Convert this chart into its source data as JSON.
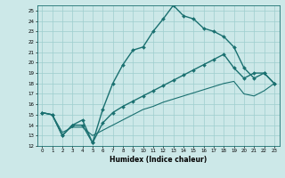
{
  "title": "",
  "xlabel": "Humidex (Indice chaleur)",
  "ylabel": "",
  "xlim": [
    -0.5,
    23.5
  ],
  "ylim": [
    12,
    25.5
  ],
  "xticks": [
    0,
    1,
    2,
    3,
    4,
    5,
    6,
    7,
    8,
    9,
    10,
    11,
    12,
    13,
    14,
    15,
    16,
    17,
    18,
    19,
    20,
    21,
    22,
    23
  ],
  "yticks": [
    12,
    13,
    14,
    15,
    16,
    17,
    18,
    19,
    20,
    21,
    22,
    23,
    24,
    25
  ],
  "background_color": "#cce8e8",
  "line_color": "#1a7070",
  "grid_color": "#9ecece",
  "series": [
    {
      "x": [
        0,
        1,
        2,
        3,
        4,
        5,
        6,
        7,
        8,
        9,
        10,
        11,
        12,
        13,
        14,
        15,
        16,
        17,
        18,
        19,
        20,
        21,
        22,
        23
      ],
      "y": [
        15.2,
        15.0,
        13.0,
        14.0,
        14.5,
        12.3,
        15.5,
        18.0,
        19.8,
        21.2,
        21.5,
        23.0,
        24.2,
        25.5,
        24.5,
        24.2,
        23.3,
        23.0,
        22.5,
        21.5,
        19.5,
        18.5,
        19.0,
        18.0
      ],
      "marker": "D",
      "markersize": 2.0,
      "linewidth": 1.0
    },
    {
      "x": [
        0,
        1,
        2,
        3,
        4,
        5,
        6,
        7,
        8,
        9,
        10,
        11,
        12,
        13,
        14,
        15,
        16,
        17,
        18,
        19,
        20,
        21,
        22,
        23
      ],
      "y": [
        15.2,
        15.0,
        13.0,
        14.0,
        14.0,
        12.3,
        14.2,
        15.2,
        15.8,
        16.3,
        16.8,
        17.3,
        17.8,
        18.3,
        18.8,
        19.3,
        19.8,
        20.3,
        20.8,
        19.5,
        18.5,
        19.0,
        19.0,
        18.0
      ],
      "marker": "D",
      "markersize": 2.0,
      "linewidth": 1.0
    },
    {
      "x": [
        0,
        1,
        2,
        3,
        4,
        5,
        6,
        7,
        8,
        9,
        10,
        11,
        12,
        13,
        14,
        15,
        16,
        17,
        18,
        19,
        20,
        21,
        22,
        23
      ],
      "y": [
        15.2,
        15.0,
        13.3,
        13.8,
        13.8,
        13.0,
        13.5,
        14.0,
        14.5,
        15.0,
        15.5,
        15.8,
        16.2,
        16.5,
        16.8,
        17.1,
        17.4,
        17.7,
        18.0,
        18.2,
        17.0,
        16.8,
        17.3,
        18.0
      ],
      "marker": null,
      "markersize": 0,
      "linewidth": 0.8
    }
  ]
}
